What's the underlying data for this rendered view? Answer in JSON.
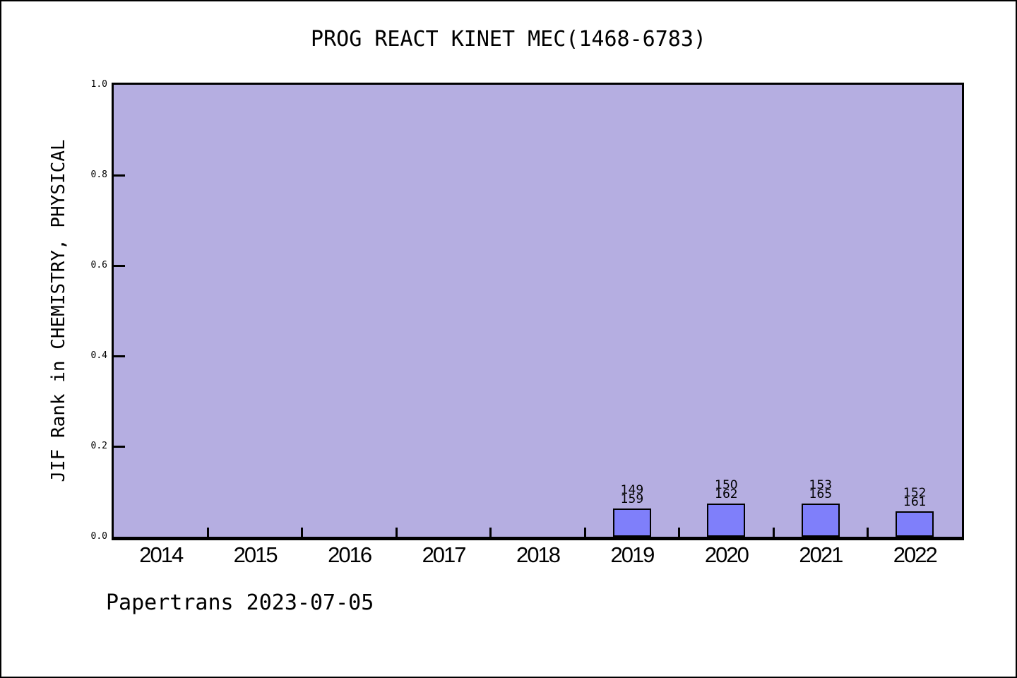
{
  "title": "PROG REACT KINET MEC(1468-6783)",
  "footer": "Papertrans 2023-07-05",
  "chart_data": {
    "type": "bar",
    "title": "PROG REACT KINET MEC(1468-6783)",
    "xlabel": "",
    "ylabel": "JIF Rank in CHEMISTRY, PHYSICAL",
    "categories": [
      "2014",
      "2015",
      "2016",
      "2017",
      "2018",
      "2019",
      "2020",
      "2021",
      "2022"
    ],
    "ylim": [
      0.0,
      1.0
    ],
    "y_ticks": [
      0.0,
      0.2,
      0.4,
      0.6,
      0.8,
      1.0
    ],
    "grid": false,
    "legend": "none",
    "bars": [
      {
        "category": "2019",
        "rank": 149,
        "total": 159,
        "label_top": "149",
        "label_bottom": "159",
        "value": 0.0629
      },
      {
        "category": "2020",
        "rank": 150,
        "total": 162,
        "label_top": "150",
        "label_bottom": "162",
        "value": 0.0741
      },
      {
        "category": "2021",
        "rank": 153,
        "total": 165,
        "label_top": "153",
        "label_bottom": "165",
        "value": 0.0727
      },
      {
        "category": "2022",
        "rank": 152,
        "total": 161,
        "label_top": "152",
        "label_bottom": "161",
        "value": 0.0559
      }
    ],
    "colors": {
      "plot_background": "#b5aee1",
      "bar_fill": "#7f7ffa",
      "bar_border": "#000000",
      "axis": "#000000",
      "text": "#000000",
      "page_background": "#ffffff"
    }
  }
}
